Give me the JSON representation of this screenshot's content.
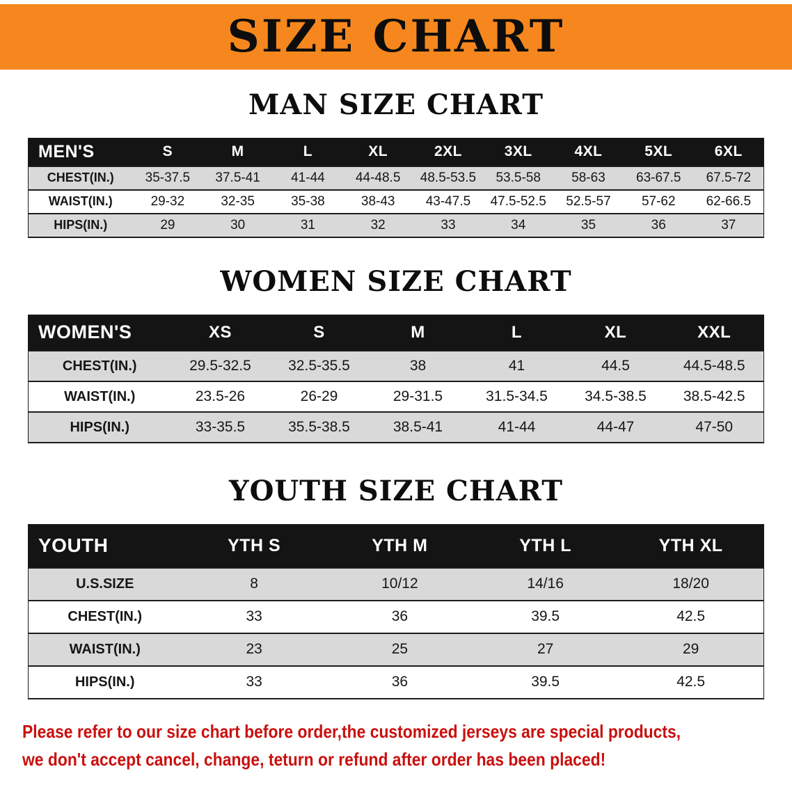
{
  "banner": {
    "title": "SIZE CHART"
  },
  "colors": {
    "banner-bg": "#F5871E",
    "header-bg": "#141414",
    "row-gray": "#D9D9D9",
    "note-red": "#C9100E"
  },
  "sections": [
    {
      "id": "men",
      "heading": "MAN SIZE CHART",
      "table": {
        "header": [
          "MEN'S",
          "S",
          "M",
          "L",
          "XL",
          "2XL",
          "3XL",
          "4XL",
          "5XL",
          "6XL"
        ],
        "rows": [
          [
            "CHEST(IN.)",
            "35-37.5",
            "37.5-41",
            "41-44",
            "44-48.5",
            "48.5-53.5",
            "53.5-58",
            "58-63",
            "63-67.5",
            "67.5-72"
          ],
          [
            "WAIST(IN.)",
            "29-32",
            "32-35",
            "35-38",
            "38-43",
            "43-47.5",
            "47.5-52.5",
            "52.5-57",
            "57-62",
            "62-66.5"
          ],
          [
            "HIPS(IN.)",
            "29",
            "30",
            "31",
            "32",
            "33",
            "34",
            "35",
            "36",
            "37"
          ]
        ]
      }
    },
    {
      "id": "women",
      "heading": "WOMEN SIZE CHART",
      "table": {
        "header": [
          "WOMEN'S",
          "XS",
          "S",
          "M",
          "L",
          "XL",
          "XXL"
        ],
        "rows": [
          [
            "CHEST(IN.)",
            "29.5-32.5",
            "32.5-35.5",
            "38",
            "41",
            "44.5",
            "44.5-48.5"
          ],
          [
            "WAIST(IN.)",
            "23.5-26",
            "26-29",
            "29-31.5",
            "31.5-34.5",
            "34.5-38.5",
            "38.5-42.5"
          ],
          [
            "HIPS(IN.)",
            "33-35.5",
            "35.5-38.5",
            "38.5-41",
            "41-44",
            "44-47",
            "47-50"
          ]
        ]
      }
    },
    {
      "id": "youth",
      "heading": "YOUTH SIZE CHART",
      "table": {
        "header": [
          "YOUTH",
          "YTH S",
          "YTH M",
          "YTH L",
          "YTH XL"
        ],
        "rows": [
          [
            "U.S.SIZE",
            "8",
            "10/12",
            "14/16",
            "18/20"
          ],
          [
            "CHEST(IN.)",
            "33",
            "36",
            "39.5",
            "42.5"
          ],
          [
            "WAIST(IN.)",
            "23",
            "25",
            "27",
            "29"
          ],
          [
            "HIPS(IN.)",
            "33",
            "36",
            "39.5",
            "42.5"
          ]
        ]
      }
    }
  ],
  "footer": {
    "lines": [
      "Please refer to our size chart before order,the customized jerseys are special products,",
      "we don't accept cancel, change, teturn or refund after order has been placed!"
    ]
  }
}
